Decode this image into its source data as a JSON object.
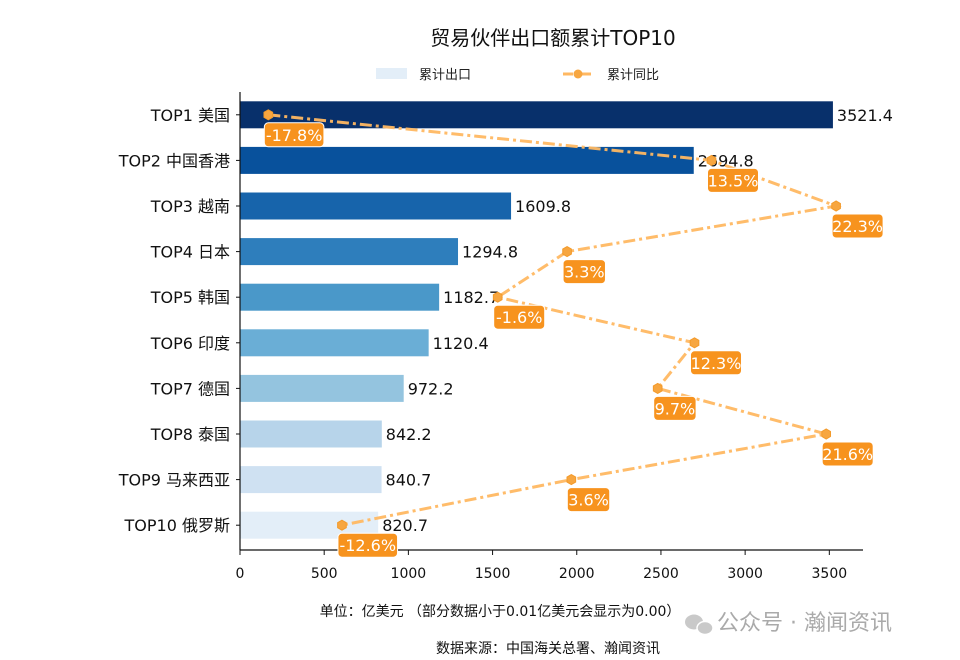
{
  "chart_data": {
    "type": "bar",
    "orientation": "horizontal",
    "title": "贸易伙伴出口额累计TOP10",
    "categories": [
      "TOP1 美国",
      "TOP2 中国香港",
      "TOP3 越南",
      "TOP4 日本",
      "TOP5 韩国",
      "TOP6 印度",
      "TOP7 德国",
      "TOP8 泰国",
      "TOP9 马来西亚",
      "TOP10 俄罗斯"
    ],
    "series": [
      {
        "name": "累计出口",
        "type": "bar",
        "values": [
          3521.4,
          2694.8,
          1609.8,
          1294.8,
          1182.7,
          1120.4,
          972.2,
          842.2,
          840.7,
          820.7
        ],
        "colors": [
          "#08306b",
          "#08519c",
          "#1764ab",
          "#2e7ebc",
          "#4a98c9",
          "#6aaed6",
          "#94c4df",
          "#b7d4ea",
          "#cfe1f2",
          "#e3eef8"
        ]
      },
      {
        "name": "累计同比",
        "type": "line",
        "unit": "%",
        "values": [
          -17.8,
          13.5,
          22.3,
          3.3,
          -1.6,
          12.3,
          9.7,
          21.6,
          3.6,
          -12.6
        ],
        "labels": [
          "-17.8%",
          "13.5%",
          "22.3%",
          "3.3%",
          "-1.6%",
          "12.3%",
          "9.7%",
          "21.6%",
          "3.6%",
          "-12.6%"
        ],
        "color": "#ffb862",
        "label_color": "#f7931e",
        "line_style": "dash-dot",
        "marker": "hexagon"
      }
    ],
    "xlim": [
      0,
      3700
    ],
    "secondary_xlim": [
      -19.8,
      24.2
    ],
    "xticks": [
      "0",
      "500",
      "1000",
      "1500",
      "2000",
      "2500",
      "3000",
      "3500"
    ],
    "xlabel": "单位：亿美元  （部分数据小于0.01亿美元会显示为0.00）",
    "source": "数据来源：中国海关总署、瀚闻资讯",
    "legend_position": "top-center",
    "grid": false
  },
  "watermark": "公众号 · 瀚闻资讯"
}
